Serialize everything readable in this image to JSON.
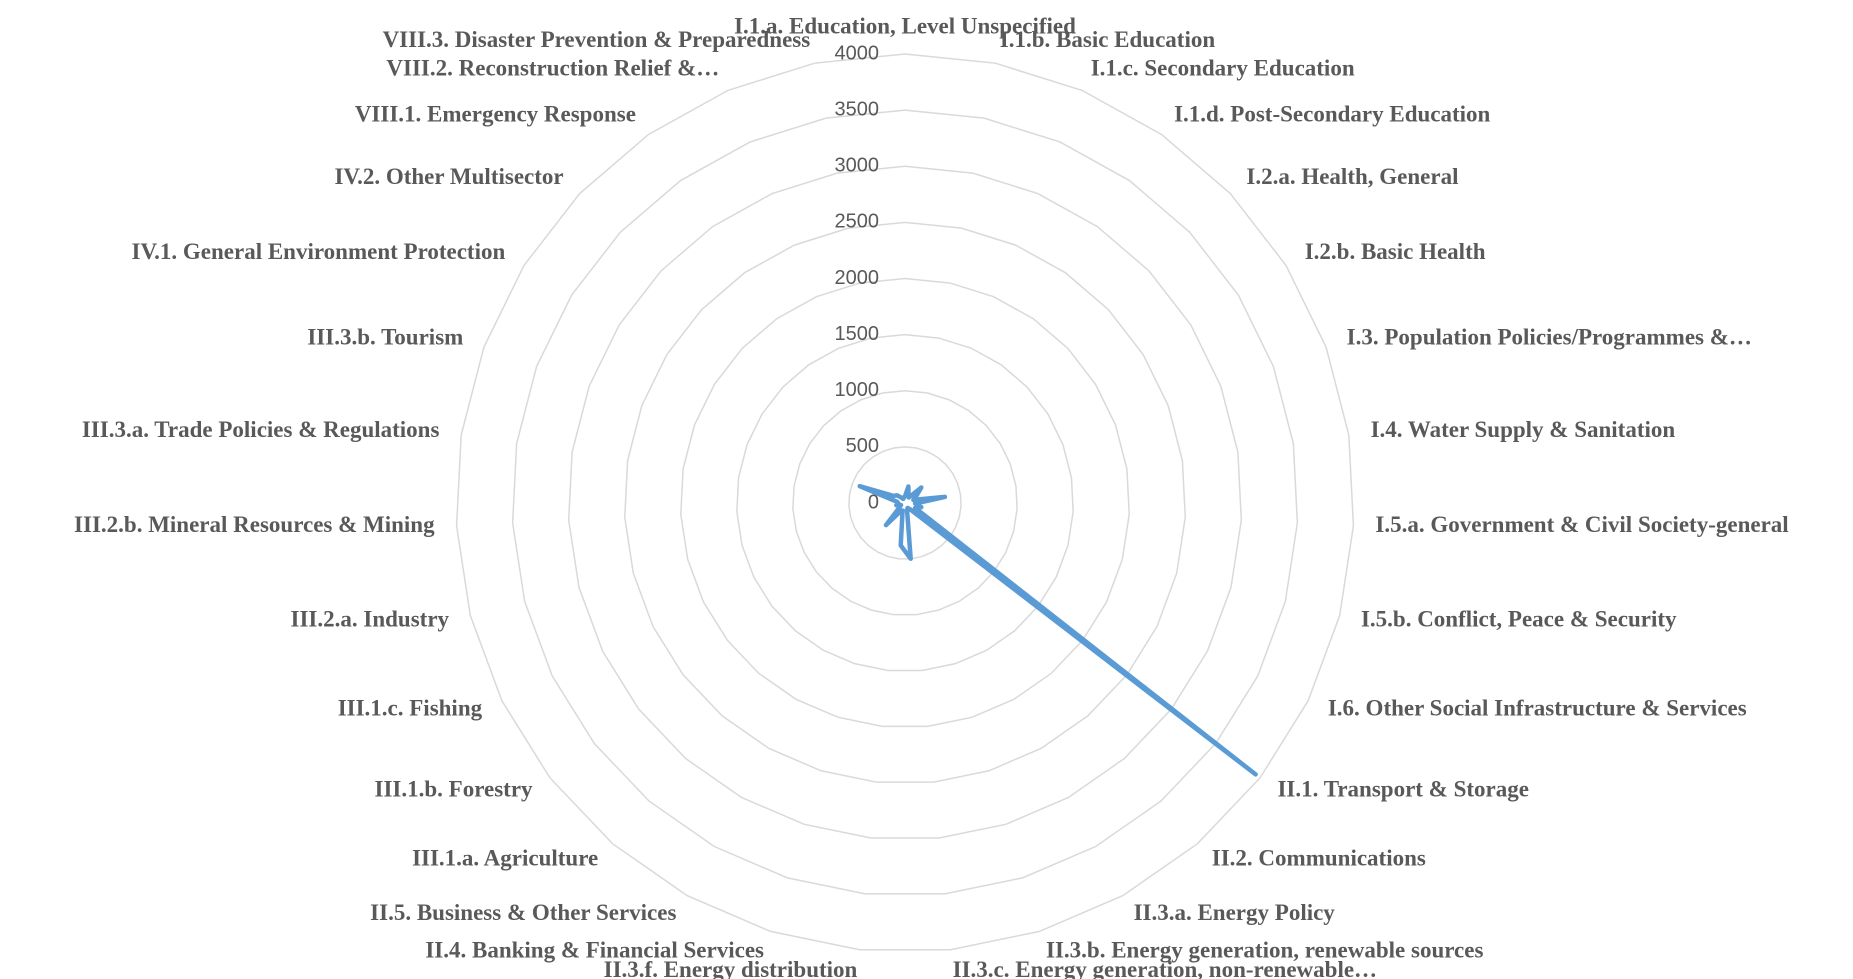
{
  "chart_data": {
    "type": "radar",
    "categories": [
      "I.1.a. Education, Level Unspecified",
      "I.1.b. Basic Education",
      "I.1.c. Secondary Education",
      "I.1.d. Post-Secondary Education",
      "I.2.a. Health, General",
      "I.2.b. Basic Health",
      "I.3. Population Policies/Programmes &…",
      "I.4. Water Supply & Sanitation",
      "I.5.a. Government & Civil Society-general",
      "I.5.b. Conflict, Peace & Security",
      "I.6. Other Social Infrastructure & Services",
      "II.1. Transport & Storage",
      "II.2. Communications",
      "II.3.a. Energy Policy",
      "II.3.b. Energy generation, renewable sources",
      "II.3.c. Energy generation, non-renewable…",
      "II.3.f. Energy distribution",
      "II.4. Banking & Financial Services",
      "II.5. Business & Other Services",
      "III.1.a. Agriculture",
      "III.1.b. Forestry",
      "III.1.c. Fishing",
      "III.2.a. Industry",
      "III.2.b. Mineral Resources & Mining",
      "III.3.a. Trade Policies & Regulations",
      "III.3.b. Tourism",
      "IV.1. General Environment Protection",
      "IV.2. Other Multisector",
      "VIII.1. Emergency Response",
      "VIII.2. Reconstruction Relief &…",
      "VIII.3. Disaster Prevention & Preparedness"
    ],
    "series": [
      {
        "color": "#5b9bd5",
        "values": [
          60,
          150,
          80,
          60,
          200,
          120,
          80,
          360,
          90,
          150,
          100,
          3950,
          80,
          50,
          60,
          500,
          380,
          70,
          90,
          260,
          60,
          40,
          80,
          60,
          70,
          430,
          120,
          100,
          60,
          40,
          50
        ]
      }
    ],
    "ylim": [
      0,
      4000
    ],
    "yticks": [
      0,
      500,
      1000,
      1500,
      2000,
      2500,
      3000,
      3500,
      4000
    ],
    "grid": true
  }
}
